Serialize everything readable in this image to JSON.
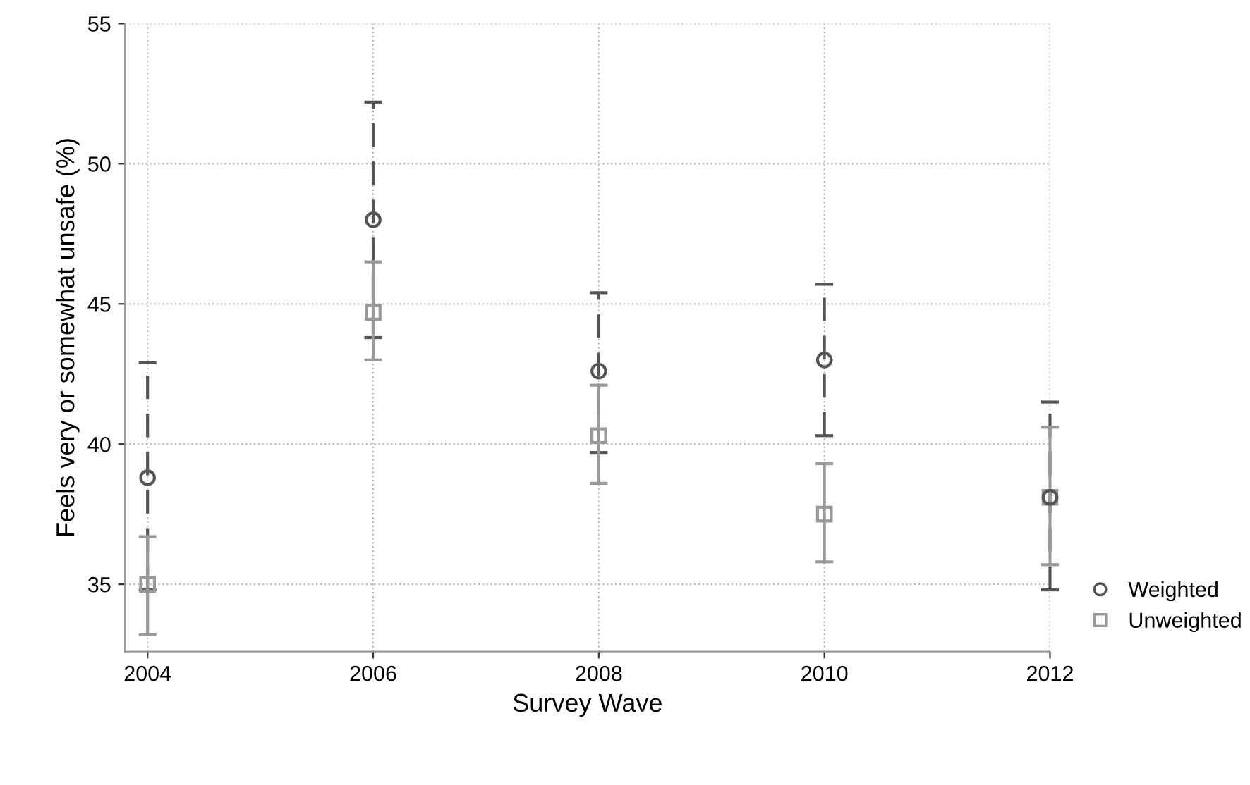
{
  "chart_data": {
    "type": "scatter",
    "xlabel": "Survey Wave",
    "ylabel": "Feels very or somewhat unsafe (%)",
    "x": [
      2004,
      2006,
      2008,
      2010,
      2012
    ],
    "series": [
      {
        "name": "Weighted",
        "color": "#555555",
        "marker": "circle",
        "line_style": "dashed",
        "values": [
          38.8,
          48.0,
          42.6,
          43.0,
          38.1
        ],
        "errors": [
          [
            34.8,
            42.9
          ],
          [
            43.8,
            52.2
          ],
          [
            39.7,
            45.4
          ],
          [
            40.3,
            45.7
          ],
          [
            34.8,
            41.5
          ]
        ]
      },
      {
        "name": "Unweighted",
        "color": "#999999",
        "marker": "square",
        "line_style": "solid",
        "values": [
          35.0,
          44.7,
          40.3,
          37.5,
          38.1
        ],
        "errors": [
          [
            33.2,
            36.7
          ],
          [
            43.0,
            46.5
          ],
          [
            38.6,
            42.1
          ],
          [
            35.8,
            39.3
          ],
          [
            35.7,
            40.6
          ]
        ]
      }
    ],
    "xlim": [
      2003.8,
      2012
    ],
    "xticks": [
      2004,
      2006,
      2008,
      2010,
      2012
    ],
    "ylim": [
      32.6,
      55
    ],
    "yticks": [
      35,
      40,
      45,
      50,
      55
    ],
    "grid": true,
    "legend": "bottom right"
  }
}
